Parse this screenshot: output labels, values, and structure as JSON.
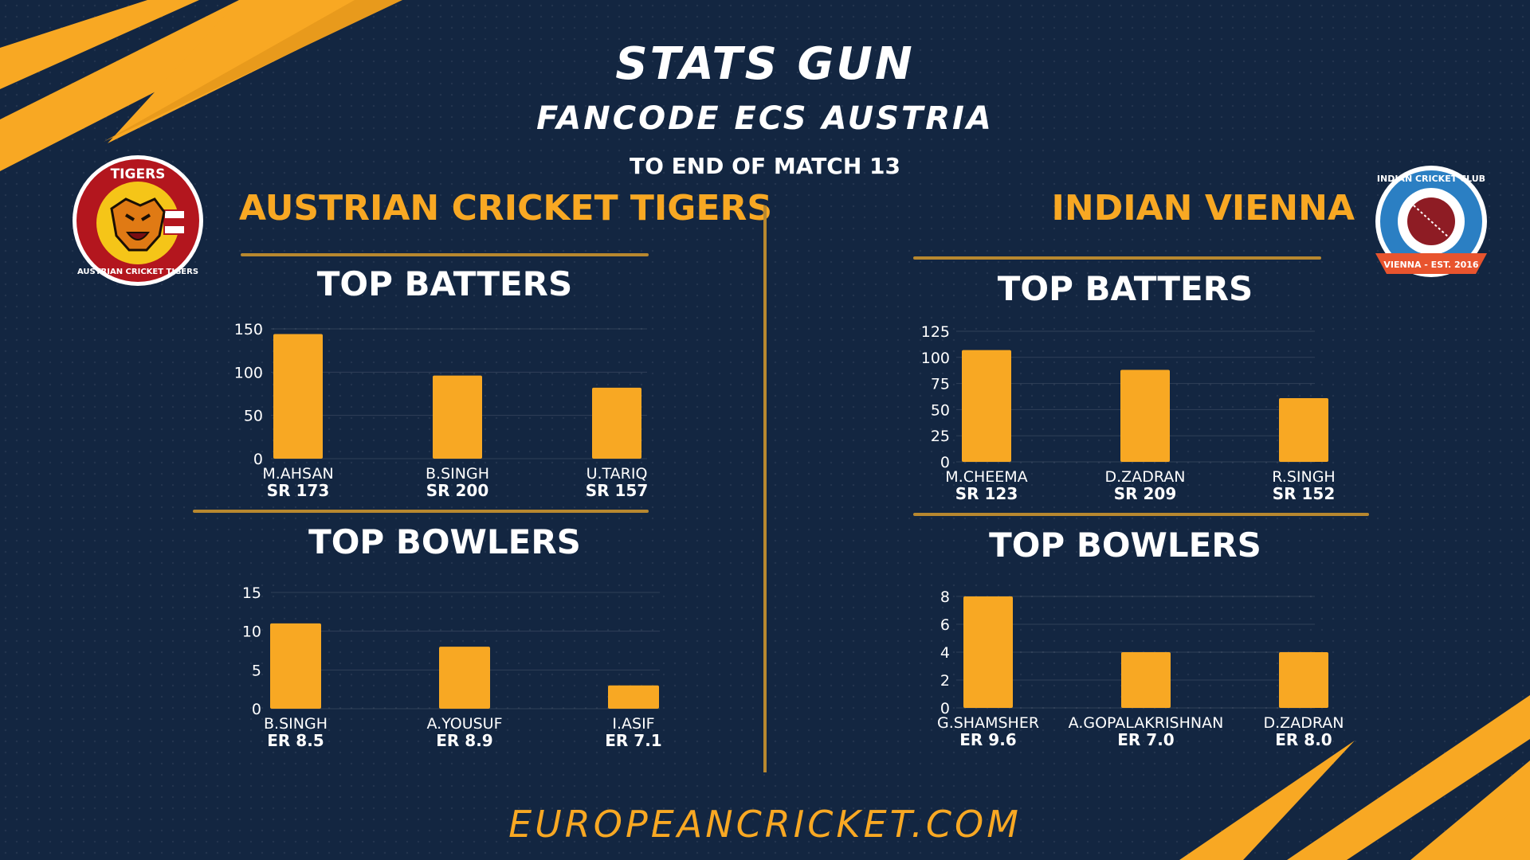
{
  "header": {
    "title": "STATS GUN",
    "subtitle": "FANCODE ECS AUSTRIA",
    "note": "TO END OF MATCH 13"
  },
  "teams": {
    "left": "AUSTRIAN CRICKET TIGERS",
    "right": "INDIAN VIENNA"
  },
  "logos": {
    "left_text_top": "TIGERS",
    "left_text_ring": "AUSTRIAN CRICKET TIGERS",
    "right_text_ring": "INDIAN CRICKET CLUB",
    "right_text_banner": "VIENNA - EST. 2016"
  },
  "footer": "EUROPEANCRICKET.COM",
  "colors": {
    "background": "#132641",
    "accent": "#f8a823",
    "bar": "#f8a823",
    "rule": "#b8882f"
  },
  "chart_data": [
    {
      "type": "bar",
      "title": "TOP BATTERS",
      "team": "AUSTRIAN CRICKET TIGERS",
      "categories": [
        "M.AHSAN",
        "B.SINGH",
        "U.TARIQ"
      ],
      "sublabels": [
        "SR 173",
        "SR 200",
        "SR 157"
      ],
      "values": [
        144,
        96,
        82
      ],
      "ylim": [
        0,
        150
      ],
      "yticks": [
        0,
        50,
        100,
        150
      ],
      "grid": true
    },
    {
      "type": "bar",
      "title": "TOP BOWLERS",
      "team": "AUSTRIAN CRICKET TIGERS",
      "categories": [
        "B.SINGH",
        "A.YOUSUF",
        "I.ASIF"
      ],
      "sublabels": [
        "ER 8.5",
        "ER 8.9",
        "ER 7.1"
      ],
      "values": [
        11,
        8,
        3
      ],
      "ylim": [
        0,
        15
      ],
      "yticks": [
        0,
        5,
        10,
        15
      ],
      "grid": true
    },
    {
      "type": "bar",
      "title": "TOP BATTERS",
      "team": "INDIAN VIENNA",
      "categories": [
        "M.CHEEMA",
        "D.ZADRAN",
        "R.SINGH"
      ],
      "sublabels": [
        "SR 123",
        "SR 209",
        "SR 152"
      ],
      "values": [
        107,
        88,
        61
      ],
      "ylim": [
        0,
        125
      ],
      "yticks": [
        0,
        25,
        50,
        75,
        100,
        125
      ],
      "grid": true
    },
    {
      "type": "bar",
      "title": "TOP BOWLERS",
      "team": "INDIAN VIENNA",
      "categories": [
        "G.SHAMSHER",
        "A.GOPALAKRISHNAN",
        "D.ZADRAN"
      ],
      "sublabels": [
        "ER 9.6",
        "ER 7.0",
        "ER 8.0"
      ],
      "values": [
        8,
        4,
        4
      ],
      "ylim": [
        0,
        8
      ],
      "yticks": [
        0,
        2,
        4,
        6,
        8
      ],
      "grid": true
    }
  ]
}
